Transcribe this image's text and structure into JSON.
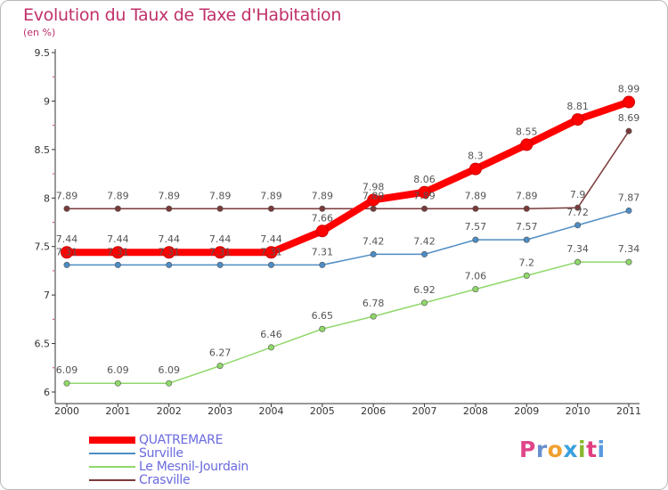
{
  "title": "Evolution du Taux de Taxe d'Habitation",
  "subtitle": "(en %)",
  "brand": {
    "letters": [
      "P",
      "r",
      "o",
      "x",
      "i",
      "t",
      "i"
    ],
    "colors": [
      "#e0468a",
      "#6a8fd0",
      "#f0a030",
      "#3aa0e0",
      "#8ab830",
      "#e04080",
      "#5a9be0"
    ]
  },
  "chart_data": {
    "type": "line",
    "x": [
      "2000",
      "2001",
      "2002",
      "2003",
      "2004",
      "2005",
      "2006",
      "2007",
      "2008",
      "2009",
      "2010",
      "2011"
    ],
    "ylim": [
      6,
      9.5
    ],
    "yticks": [
      "6",
      "6.5",
      "7",
      "7.5",
      "8",
      "8.5",
      "9",
      "9.5"
    ],
    "grid": false,
    "legend_position": "bottom-left",
    "series": [
      {
        "name": "QUATREMARE",
        "color": "#ff0000",
        "values": [
          7.44,
          7.44,
          7.44,
          7.44,
          7.44,
          7.66,
          7.98,
          8.06,
          8.3,
          8.55,
          8.81,
          8.99
        ],
        "labels": [
          "7.44",
          "7.44",
          "7.44",
          "7.44",
          "7.44",
          "7.66",
          "7.98",
          "8.06",
          "8.3",
          "8.55",
          "8.81",
          "8.99"
        ]
      },
      {
        "name": "Surville",
        "color": "#4d8cc4",
        "values": [
          7.31,
          7.31,
          7.31,
          7.31,
          7.31,
          7.31,
          7.42,
          7.42,
          7.57,
          7.57,
          7.72,
          7.87
        ],
        "labels": [
          "7.31",
          "7.31",
          "7.31",
          "7.31",
          "7.31",
          "7.31",
          "7.42",
          "7.42",
          "7.57",
          "7.57",
          "7.72",
          "7.87"
        ]
      },
      {
        "name": "Le Mesnil-Jourdain",
        "color": "#8fd86a",
        "values": [
          6.09,
          6.09,
          6.09,
          6.27,
          6.46,
          6.65,
          6.78,
          6.92,
          7.06,
          7.2,
          7.34,
          7.34
        ],
        "labels": [
          "6.09",
          "6.09",
          "6.09",
          "6.27",
          "6.46",
          "6.65",
          "6.78",
          "6.92",
          "7.06",
          "7.2",
          "7.34",
          "7.34"
        ]
      },
      {
        "name": "Crasville",
        "color": "#7a3a3a",
        "values": [
          7.89,
          7.89,
          7.89,
          7.89,
          7.89,
          7.89,
          7.89,
          7.89,
          7.89,
          7.89,
          7.9,
          8.69
        ],
        "labels": [
          "7.89",
          "7.89",
          "7.89",
          "7.89",
          "7.89",
          "7.89",
          "7.89",
          "7.89",
          "7.89",
          "7.89",
          "7.9",
          "8.69"
        ]
      }
    ]
  }
}
